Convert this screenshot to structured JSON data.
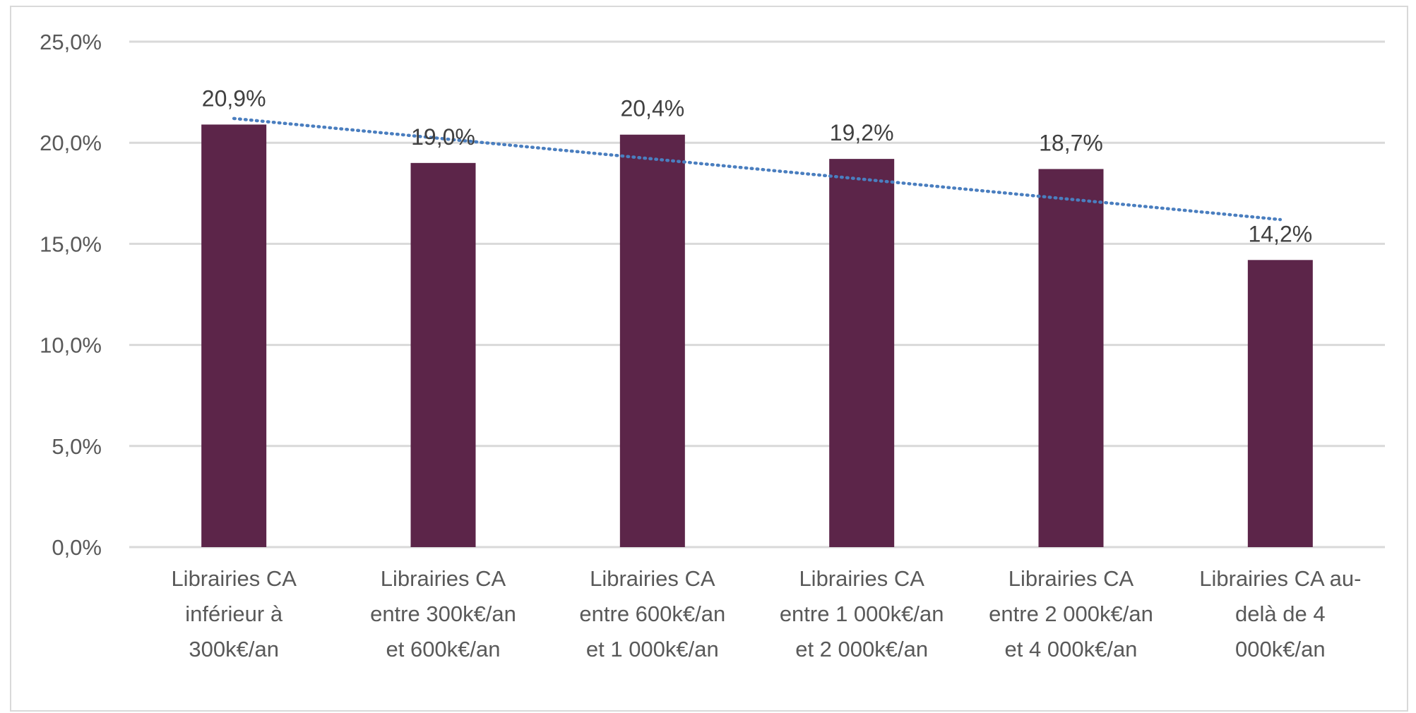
{
  "chart_data": {
    "type": "bar",
    "title": "",
    "xlabel": "",
    "ylabel": "",
    "ylim": [
      0,
      25
    ],
    "y_ticks": [
      0,
      5,
      10,
      15,
      20,
      25
    ],
    "y_tick_labels": [
      "0,0%",
      "5,0%",
      "10,0%",
      "15,0%",
      "20,0%",
      "25,0%"
    ],
    "grid": true,
    "legend": "none",
    "categories": [
      [
        "Librairies CA",
        "inférieur à",
        "300k€/an"
      ],
      [
        "Librairies CA",
        "entre 300k€/an",
        "et 600k€/an"
      ],
      [
        "Librairies CA",
        "entre 600k€/an",
        "et 1 000k€/an"
      ],
      [
        "Librairies CA",
        "entre 1 000k€/an",
        "et 2 000k€/an"
      ],
      [
        "Librairies CA",
        "entre 2 000k€/an",
        "et 4 000k€/an"
      ],
      [
        "Librairies CA au-",
        "delà de 4",
        "000k€/an"
      ]
    ],
    "values": [
      20.9,
      19.0,
      20.4,
      19.2,
      18.7,
      14.2
    ],
    "data_labels": [
      "20,9%",
      "19,0%",
      "20,4%",
      "19,2%",
      "18,7%",
      "14,2%"
    ],
    "trendline": {
      "type": "linear",
      "style": "dotted",
      "start_value": 21.2,
      "end_value": 16.2
    },
    "colors": {
      "bar": "#5c2549",
      "trendline": "#4a7ebf",
      "grid": "#d9d9d9"
    }
  }
}
